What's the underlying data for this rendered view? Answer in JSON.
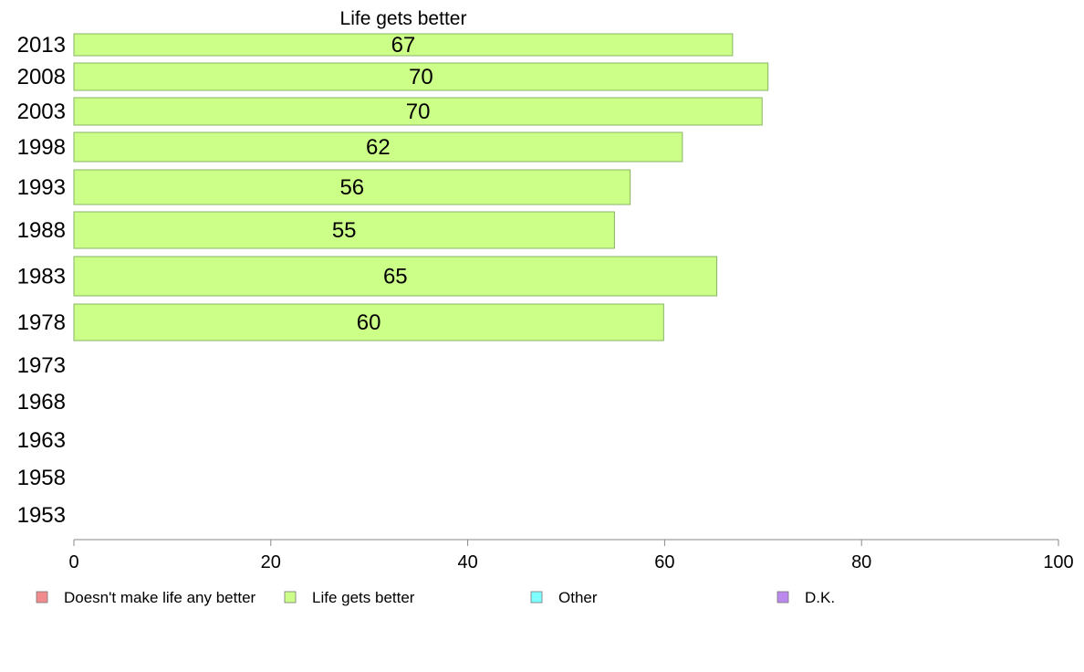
{
  "chart_data": {
    "type": "bar",
    "orientation": "horizontal",
    "title": "Life gets better",
    "categories": [
      "2013",
      "2008",
      "2003",
      "1998",
      "1993",
      "1988",
      "1983",
      "1978",
      "1973",
      "1968",
      "1963",
      "1958",
      "1953"
    ],
    "series": [
      {
        "name": "Life gets better",
        "values": [
          67,
          70,
          70,
          62,
          56,
          55,
          65,
          60,
          null,
          null,
          null,
          null,
          null
        ],
        "value_labels": [
          "67",
          "70",
          "70",
          "62",
          "56",
          "55",
          "65",
          "60",
          null,
          null,
          null,
          null,
          null
        ],
        "exact_values": [
          66.9,
          70.5,
          69.9,
          61.8,
          56.5,
          54.9,
          65.3,
          59.9,
          null,
          null,
          null,
          null,
          null
        ],
        "color": "#ccff88"
      }
    ],
    "xlim": [
      0,
      100
    ],
    "xticks": [
      0,
      20,
      40,
      60,
      80,
      100
    ],
    "grid": false,
    "legend": {
      "placement": "bottom",
      "entries": [
        {
          "label": "Doesn't make life any better",
          "color": "#f28b8b"
        },
        {
          "label": "Life gets better",
          "color": "#ccff88"
        },
        {
          "label": "Other",
          "color": "#80ffff"
        },
        {
          "label": "D.K.",
          "color": "#bb88ee"
        }
      ]
    }
  }
}
